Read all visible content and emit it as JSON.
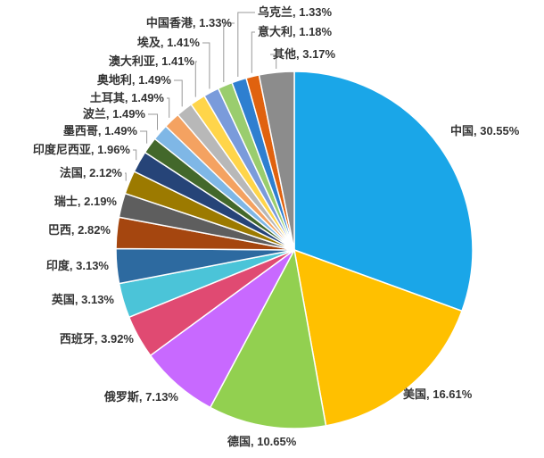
{
  "chart_data": {
    "type": "pie",
    "title": "",
    "legend": "none",
    "slices": [
      {
        "label": "中国",
        "value": 30.55,
        "display": "中国, 30.55%",
        "color": "#1AA6E8"
      },
      {
        "label": "美国",
        "value": 16.61,
        "display": "美国, 16.61%",
        "color": "#FFC000"
      },
      {
        "label": "德国",
        "value": 10.65,
        "display": "德国, 10.65%",
        "color": "#92D050"
      },
      {
        "label": "俄罗斯",
        "value": 7.13,
        "display": "俄罗斯, 7.13%",
        "color": "#C869FF"
      },
      {
        "label": "西班牙",
        "value": 3.92,
        "display": "西班牙, 3.92%",
        "color": "#E04A72"
      },
      {
        "label": "英国",
        "value": 3.13,
        "display": "英国, 3.13%",
        "color": "#4BC4D8"
      },
      {
        "label": "印度",
        "value": 3.13,
        "display": "印度, 3.13%",
        "color": "#2D6AA0"
      },
      {
        "label": "巴西",
        "value": 2.82,
        "display": "巴西, 2.82%",
        "color": "#A5460F"
      },
      {
        "label": "瑞士",
        "value": 2.19,
        "display": "瑞士, 2.19%",
        "color": "#5E5E5E"
      },
      {
        "label": "法国",
        "value": 2.12,
        "display": "法国, 2.12%",
        "color": "#9C7A00"
      },
      {
        "label": "印度尼西亚",
        "value": 1.96,
        "display": "印度尼西亚, 1.96%",
        "color": "#264478"
      },
      {
        "label": "墨西哥",
        "value": 1.49,
        "display": "墨西哥, 1.49%",
        "color": "#43682B"
      },
      {
        "label": "波兰",
        "value": 1.49,
        "display": "波兰, 1.49%",
        "color": "#7FB7E6"
      },
      {
        "label": "土耳其",
        "value": 1.49,
        "display": "土耳其, 1.49%",
        "color": "#F4A261"
      },
      {
        "label": "奥地利",
        "value": 1.49,
        "display": "奥地利, 1.49%",
        "color": "#B8B8B8"
      },
      {
        "label": "澳大利亚",
        "value": 1.41,
        "display": "澳大利亚, 1.41%",
        "color": "#FFD54A"
      },
      {
        "label": "埃及",
        "value": 1.41,
        "display": "埃及, 1.41%",
        "color": "#7A9BDB"
      },
      {
        "label": "中国香港",
        "value": 1.33,
        "display": "中国香港, 1.33%",
        "color": "#9ACD6E"
      },
      {
        "label": "乌克兰",
        "value": 1.33,
        "display": "乌克兰, 1.33%",
        "color": "#2E7FD0"
      },
      {
        "label": "意大利",
        "value": 1.18,
        "display": "意大利, 1.18%",
        "color": "#E0620F"
      },
      {
        "label": "其他",
        "value": 3.17,
        "display": "其他, 3.17%",
        "color": "#8C8C8C"
      }
    ]
  }
}
